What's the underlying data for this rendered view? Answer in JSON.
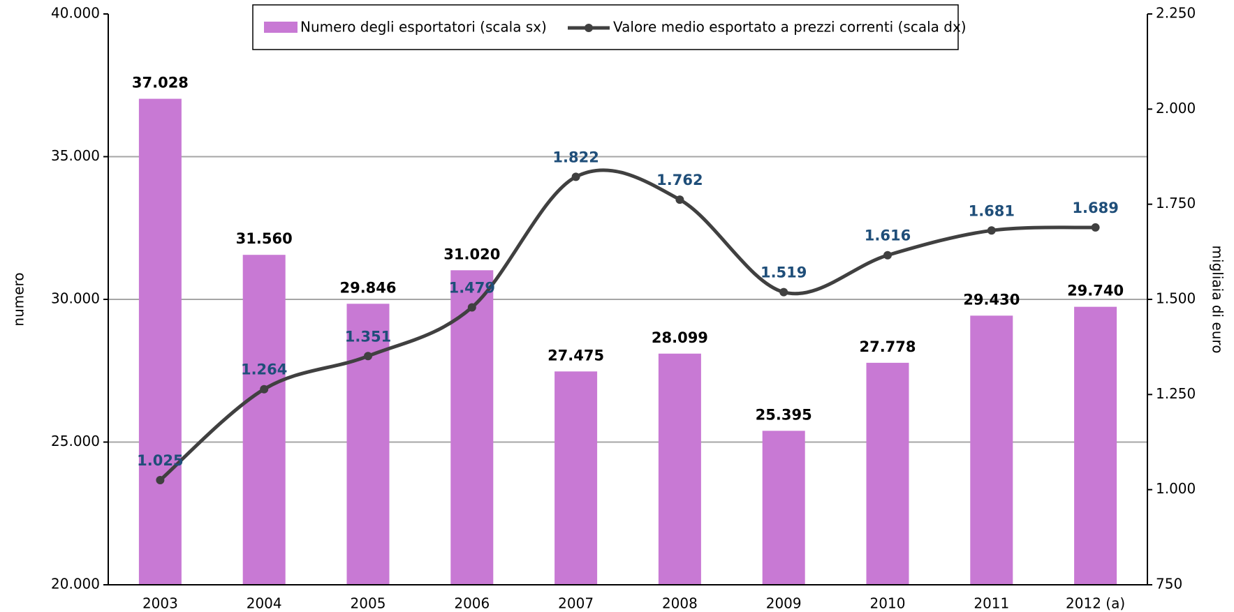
{
  "chart_data": {
    "type": "bar_line",
    "categories": [
      "2003",
      "2004",
      "2005",
      "2006",
      "2007",
      "2008",
      "2009",
      "2010",
      "2011",
      "2012 (a)"
    ],
    "series": [
      {
        "name": "Numero degli esportatori (scala sx)",
        "type": "bar",
        "color": "#c879d4",
        "values": [
          37028,
          31560,
          29846,
          31020,
          27475,
          28099,
          25395,
          27778,
          29430,
          29740
        ],
        "value_labels": [
          "37.028",
          "31.560",
          "29.846",
          "31.020",
          "27.475",
          "28.099",
          "25.395",
          "27.778",
          "29.430",
          "29.740"
        ]
      },
      {
        "name": "Valore medio esportato a prezzi correnti (scala dx)",
        "type": "line",
        "axis": "y2",
        "color": "#404040",
        "values": [
          1025,
          1264,
          1351,
          1479,
          1822,
          1762,
          1519,
          1616,
          1681,
          1689
        ],
        "value_labels": [
          "1.025",
          "1.264",
          "1.351",
          "1.479",
          "1.822",
          "1.762",
          "1.519",
          "1.616",
          "1.681",
          "1.689"
        ]
      }
    ],
    "ylabel": "numero",
    "y2label": "migliaia di euro",
    "ylim": [
      20000,
      40000
    ],
    "yticks": [
      {
        "value": 20000,
        "label": "20.000"
      },
      {
        "value": 25000,
        "label": "25.000"
      },
      {
        "value": 30000,
        "label": "30.000"
      },
      {
        "value": 35000,
        "label": "35.000"
      },
      {
        "value": 40000,
        "label": "40.000"
      }
    ],
    "y2lim": [
      750,
      2250
    ],
    "y2ticks": [
      750,
      {
        "value": 1000,
        "label": "1.000"
      },
      {
        "value": 1250,
        "label": "1.250"
      },
      {
        "value": 1500,
        "label": "1.500"
      },
      {
        "value": 1750,
        "label": "1.750"
      },
      {
        "value": 2000,
        "label": "2.000"
      },
      {
        "value": 2250,
        "label": "2.250"
      }
    ],
    "grid": true,
    "legend": "top"
  }
}
